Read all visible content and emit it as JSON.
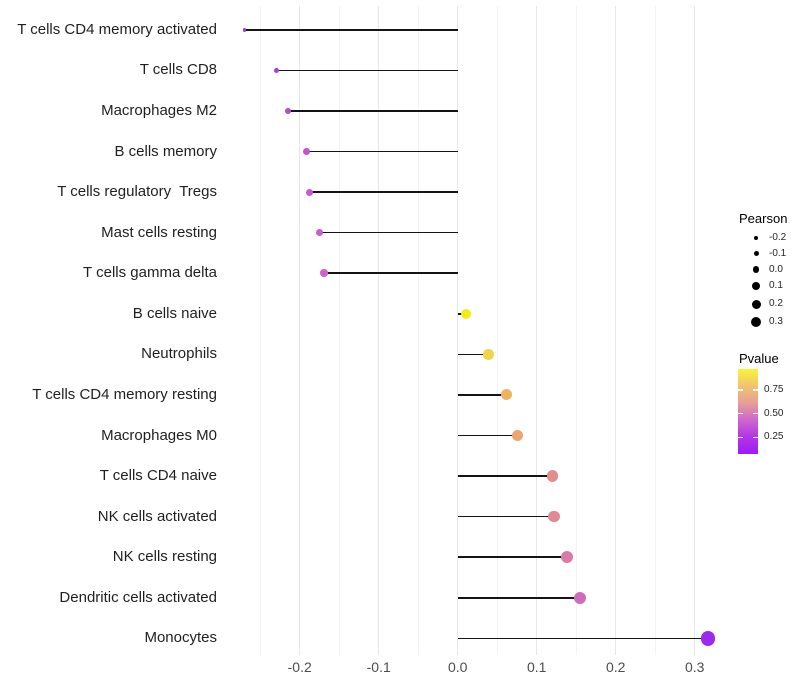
{
  "figure": {
    "background": "#ffffff"
  },
  "chart_data": {
    "type": "lollipop",
    "orientation": "horizontal",
    "title": "",
    "xlabel": "",
    "ylabel": "",
    "grid": "vertical major and minor gridlines only, light gray on white",
    "xlim": [
      -0.295,
      0.345
    ],
    "x_ticks": [
      {
        "value": -0.2,
        "label": "-0.2"
      },
      {
        "value": -0.1,
        "label": "-0.1"
      },
      {
        "value": 0.0,
        "label": "0.0"
      },
      {
        "value": 0.1,
        "label": "0.1"
      },
      {
        "value": 0.2,
        "label": "0.2"
      },
      {
        "value": 0.3,
        "label": "0.3"
      }
    ],
    "x_minor_ticks": [
      -0.25,
      -0.15,
      -0.05,
      0.05,
      0.15,
      0.25
    ],
    "stem_color": "#141414",
    "points": [
      {
        "label": "T cells CD4 memory activated",
        "pearson": -0.27,
        "dot_color": "#A63AD8",
        "dot_diameter": 3.5
      },
      {
        "label": "T cells CD8",
        "pearson": -0.23,
        "dot_color": "#AE41D3",
        "dot_diameter": 5
      },
      {
        "label": "Macrophages M2",
        "pearson": -0.215,
        "dot_color": "#B847D0",
        "dot_diameter": 6.5
      },
      {
        "label": "B cells memory",
        "pearson": -0.192,
        "dot_color": "#C253CB",
        "dot_diameter": 7
      },
      {
        "label": "T cells regulatory  Tregs",
        "pearson": -0.187,
        "dot_color": "#C55ACA",
        "dot_diameter": 7
      },
      {
        "label": "Mast cells resting",
        "pearson": -0.175,
        "dot_color": "#C75FC9",
        "dot_diameter": 7.5
      },
      {
        "label": "T cells gamma delta",
        "pearson": -0.169,
        "dot_color": "#CA64C7",
        "dot_diameter": 7.5
      },
      {
        "label": "B cells naive",
        "pearson": 0.01,
        "dot_color": "#F4EC15",
        "dot_diameter": 10
      },
      {
        "label": "Neutrophils",
        "pearson": 0.039,
        "dot_color": "#F2D44C",
        "dot_diameter": 10.5
      },
      {
        "label": "T cells CD4 memory resting",
        "pearson": 0.062,
        "dot_color": "#EFB260",
        "dot_diameter": 11
      },
      {
        "label": "Macrophages M0",
        "pearson": 0.076,
        "dot_color": "#EBA472",
        "dot_diameter": 11
      },
      {
        "label": "T cells CD4 naive",
        "pearson": 0.12,
        "dot_color": "#E18D8C",
        "dot_diameter": 11.5
      },
      {
        "label": "NK cells activated",
        "pearson": 0.122,
        "dot_color": "#E08A94",
        "dot_diameter": 11.5
      },
      {
        "label": "NK cells resting",
        "pearson": 0.138,
        "dot_color": "#D87BA5",
        "dot_diameter": 12
      },
      {
        "label": "Dendritic cells activated",
        "pearson": 0.155,
        "dot_color": "#CE6CBC",
        "dot_diameter": 12.5
      },
      {
        "label": "Monocytes",
        "pearson": 0.317,
        "dot_color": "#9C2BE9",
        "dot_diameter": 14.5
      }
    ],
    "legend_size": {
      "title": "Pearson",
      "key_color": "#000000",
      "entries": [
        {
          "label": "-0.2",
          "diameter": 4
        },
        {
          "label": "-0.1",
          "diameter": 5
        },
        {
          "label": "0.0",
          "diameter": 6.5
        },
        {
          "label": "0.1",
          "diameter": 8
        },
        {
          "label": "0.2",
          "diameter": 9
        },
        {
          "label": "0.3",
          "diameter": 10
        }
      ]
    },
    "legend_color": {
      "title": "Pvalue",
      "gradient_top_to_bottom": [
        "#F9F43C",
        "#F2C36E",
        "#E79E97",
        "#CE66CC",
        "#B336E7",
        "#A01BF4"
      ],
      "ticks": [
        {
          "label": "0.75",
          "frac_from_top": 0.247
        },
        {
          "label": "0.50",
          "frac_from_top": 0.526
        },
        {
          "label": "0.25",
          "frac_from_top": 0.803
        }
      ]
    }
  }
}
